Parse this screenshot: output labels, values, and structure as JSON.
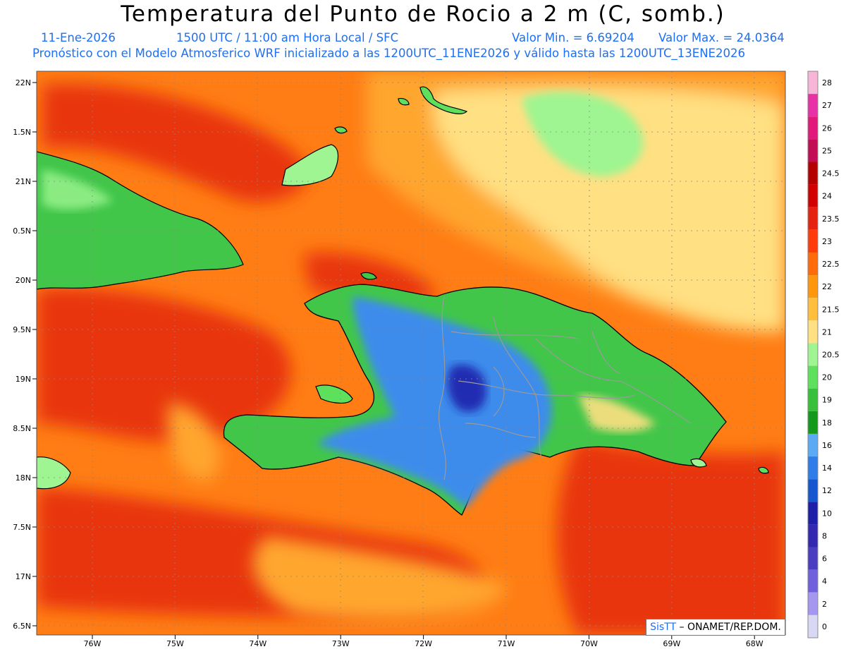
{
  "header": {
    "title": "Temperatura del Punto de Rocio a 2 m (C, somb.)",
    "date": "11-Ene-2026",
    "time": "1500 UTC / 11:00 am Hora Local / SFC",
    "min": "Valor Min. = 6.69204",
    "max": "Valor Max. = 24.0364",
    "model": "Pronóstico con el Modelo Atmosferico WRF inicializado a las 1200UTC_11ENE2026 y válido hasta las  1200UTC_13ENE2026"
  },
  "axes": {
    "lat_ticks": [
      "22N",
      "1.5N",
      "21N",
      "0.5N",
      "20N",
      "9.5N",
      "19N",
      "8.5N",
      "18N",
      "7.5N",
      "17N",
      "6.5N"
    ],
    "lon_ticks": [
      "76W",
      "75W",
      "74W",
      "73W",
      "72W",
      "71W",
      "70W",
      "69W",
      "68W"
    ]
  },
  "colorbar": {
    "levels": [
      "28",
      "27",
      "26",
      "25",
      "24.5",
      "24",
      "23.5",
      "23",
      "22.5",
      "22",
      "21.5",
      "21",
      "20.5",
      "20",
      "19",
      "18",
      "16",
      "14",
      "12",
      "10",
      "8",
      "6",
      "4",
      "2",
      "0"
    ],
    "colors": [
      "#f7b6d8",
      "#e831a7",
      "#e0197a",
      "#c20d55",
      "#b50000",
      "#d20000",
      "#e52210",
      "#ff3b0b",
      "#ff6a0b",
      "#ff960b",
      "#ffbe3c",
      "#ffe082",
      "#9ef591",
      "#5de05b",
      "#36c03a",
      "#139a1c",
      "#5aaaf5",
      "#2e7de8",
      "#1657d0",
      "#1e1fa8",
      "#3229b0",
      "#4a3dc0",
      "#7060dd",
      "#a596f0",
      "#d8d8f5"
    ]
  },
  "credit": {
    "brand": "SisTT",
    "text": "– ONAMET/REP.DOM."
  },
  "colors": {
    "ocean": "#ff7d14",
    "ocean_dark": "#e8340d",
    "ocean_light": "#ffa62e",
    "land_blue": "#3d8cec",
    "land_green": "#41c64a"
  }
}
